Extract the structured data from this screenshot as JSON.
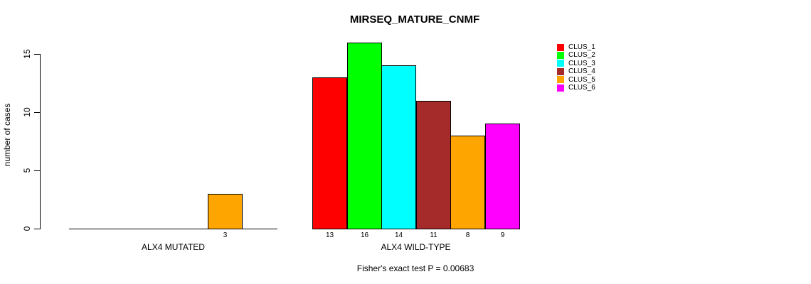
{
  "chart_data": {
    "type": "bar",
    "title": "MIRSEQ_MATURE_CNMF",
    "ylabel": "number of cases",
    "xlabel": "",
    "annotation": "Fisher's exact test P = 0.00683",
    "ylim": [
      0,
      16
    ],
    "yticks": [
      0,
      5,
      10,
      15
    ],
    "grid": false,
    "legend_position": "right",
    "legend": [
      "CLUS_1",
      "CLUS_2",
      "CLUS_3",
      "CLUS_4",
      "CLUS_5",
      "CLUS_6"
    ],
    "colors": [
      "#FF0000",
      "#00FF00",
      "#00FFFF",
      "#A52A2A",
      "#FFA500",
      "#FF00FF"
    ],
    "groups": [
      {
        "label": "ALX4 MUTATED",
        "values": [
          0,
          0,
          0,
          0,
          3,
          0
        ],
        "bar_labels": [
          "",
          "",
          "",
          "",
          "3",
          ""
        ]
      },
      {
        "label": "ALX4 WILD-TYPE",
        "values": [
          13,
          16,
          14,
          11,
          8,
          9
        ],
        "bar_labels": [
          "13",
          "16",
          "14",
          "11",
          "8",
          "9"
        ]
      }
    ]
  }
}
